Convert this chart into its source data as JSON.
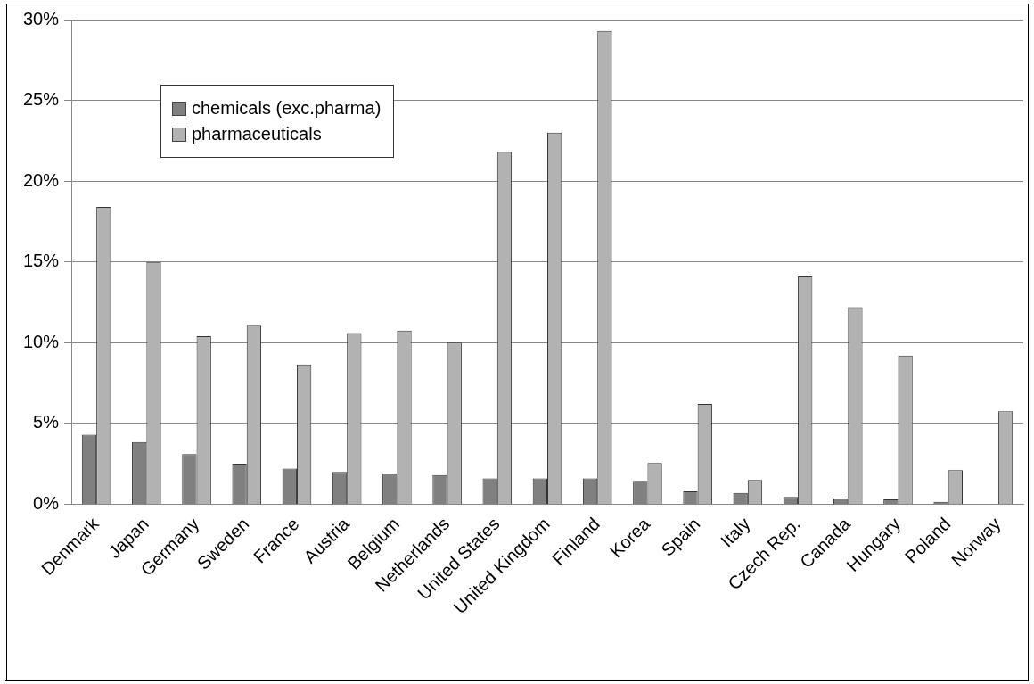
{
  "chart_data": {
    "type": "bar",
    "categories": [
      "Denmark",
      "Japan",
      "Germany",
      "Sweden",
      "France",
      "Austria",
      "Belgium",
      "Netherlands",
      "United States",
      "United Kingdom",
      "Finland",
      "Korea",
      "Spain",
      "Italy",
      "Czech Rep.",
      "Canada",
      "Hungary",
      "Poland",
      "Norway"
    ],
    "series": [
      {
        "name": "chemicals (exc.pharma)",
        "color": "#808080",
        "values": [
          4.3,
          3.85,
          3.1,
          2.5,
          2.2,
          2.0,
          1.9,
          1.8,
          1.6,
          1.6,
          1.6,
          1.45,
          0.8,
          0.7,
          0.45,
          0.35,
          0.3,
          0.15,
          0
        ]
      },
      {
        "name": "pharmaceuticals",
        "color": "#b2b2b2",
        "values": [
          18.4,
          15.0,
          10.4,
          11.1,
          8.65,
          10.6,
          10.75,
          10.0,
          21.8,
          23.0,
          29.3,
          2.55,
          6.2,
          1.5,
          14.1,
          12.2,
          9.2,
          2.1,
          5.75
        ]
      }
    ],
    "ylim": [
      0,
      30
    ],
    "yticks": [
      {
        "value": 0,
        "label": "0%"
      },
      {
        "value": 5,
        "label": "5%"
      },
      {
        "value": 10,
        "label": "10%"
      },
      {
        "value": 15,
        "label": "15%"
      },
      {
        "value": 20,
        "label": "20%"
      },
      {
        "value": 25,
        "label": "25%"
      },
      {
        "value": 30,
        "label": "30%"
      }
    ],
    "grid": "y",
    "legend": "top left"
  }
}
